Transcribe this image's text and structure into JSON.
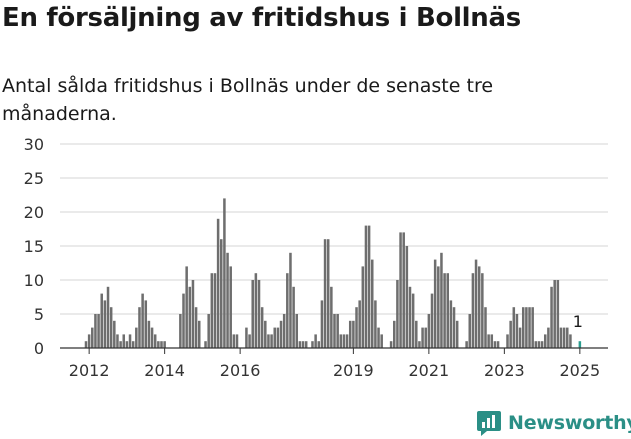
{
  "title": "En försäljning av fritidshus i Bollnäs",
  "subtitle": "Antal sålda fritidshus i Bollnäs under de senaste tre månaderna.",
  "brand": {
    "name": "Newsworthy"
  },
  "colors": {
    "bar": "#6e6e6e",
    "highlight": "#2a9d8f",
    "grid": "#d4d4d4",
    "axis": "#333333",
    "brand": "#2b8f86"
  },
  "chart_data": {
    "type": "bar",
    "x_unit": "month",
    "x_start": "2011-12",
    "x_end": "2025-02",
    "ylim": [
      0,
      30
    ],
    "y_ticks": [
      0,
      5,
      10,
      15,
      20,
      25,
      30
    ],
    "x_ticks": [
      {
        "label": "2012",
        "x": "2012-01"
      },
      {
        "label": "2014",
        "x": "2014-01"
      },
      {
        "label": "2016",
        "x": "2016-01"
      },
      {
        "label": "2019",
        "x": "2019-01"
      },
      {
        "label": "2021",
        "x": "2021-01"
      },
      {
        "label": "2023",
        "x": "2023-01"
      },
      {
        "label": "2025",
        "x": "2025-01"
      }
    ],
    "grid": true,
    "bars": [
      {
        "x": "2011-12",
        "value": 1
      },
      {
        "x": "2012-01",
        "value": 2
      },
      {
        "x": "2012-02",
        "value": 3
      },
      {
        "x": "2012-03",
        "value": 5
      },
      {
        "x": "2012-04",
        "value": 5
      },
      {
        "x": "2012-05",
        "value": 8
      },
      {
        "x": "2012-06",
        "value": 7
      },
      {
        "x": "2012-07",
        "value": 9
      },
      {
        "x": "2012-08",
        "value": 6
      },
      {
        "x": "2012-09",
        "value": 4
      },
      {
        "x": "2012-10",
        "value": 2
      },
      {
        "x": "2012-11",
        "value": 1
      },
      {
        "x": "2012-12",
        "value": 2
      },
      {
        "x": "2013-01",
        "value": 1
      },
      {
        "x": "2013-02",
        "value": 2
      },
      {
        "x": "2013-03",
        "value": 1
      },
      {
        "x": "2013-04",
        "value": 3
      },
      {
        "x": "2013-05",
        "value": 6
      },
      {
        "x": "2013-06",
        "value": 8
      },
      {
        "x": "2013-07",
        "value": 7
      },
      {
        "x": "2013-08",
        "value": 4
      },
      {
        "x": "2013-09",
        "value": 3
      },
      {
        "x": "2013-10",
        "value": 2
      },
      {
        "x": "2013-11",
        "value": 1
      },
      {
        "x": "2013-12",
        "value": 1
      },
      {
        "x": "2014-01",
        "value": 1
      },
      {
        "x": "2014-06",
        "value": 5
      },
      {
        "x": "2014-07",
        "value": 8
      },
      {
        "x": "2014-08",
        "value": 12
      },
      {
        "x": "2014-09",
        "value": 9
      },
      {
        "x": "2014-10",
        "value": 10
      },
      {
        "x": "2014-11",
        "value": 6
      },
      {
        "x": "2014-12",
        "value": 4
      },
      {
        "x": "2015-02",
        "value": 1
      },
      {
        "x": "2015-03",
        "value": 5
      },
      {
        "x": "2015-04",
        "value": 11
      },
      {
        "x": "2015-05",
        "value": 11
      },
      {
        "x": "2015-06",
        "value": 19
      },
      {
        "x": "2015-07",
        "value": 16
      },
      {
        "x": "2015-08",
        "value": 22
      },
      {
        "x": "2015-09",
        "value": 14
      },
      {
        "x": "2015-10",
        "value": 12
      },
      {
        "x": "2015-11",
        "value": 2
      },
      {
        "x": "2015-12",
        "value": 2
      },
      {
        "x": "2016-03",
        "value": 3
      },
      {
        "x": "2016-04",
        "value": 2
      },
      {
        "x": "2016-05",
        "value": 10
      },
      {
        "x": "2016-06",
        "value": 11
      },
      {
        "x": "2016-07",
        "value": 10
      },
      {
        "x": "2016-08",
        "value": 6
      },
      {
        "x": "2016-09",
        "value": 4
      },
      {
        "x": "2016-10",
        "value": 2
      },
      {
        "x": "2016-11",
        "value": 2
      },
      {
        "x": "2016-12",
        "value": 3
      },
      {
        "x": "2017-01",
        "value": 3
      },
      {
        "x": "2017-02",
        "value": 4
      },
      {
        "x": "2017-03",
        "value": 5
      },
      {
        "x": "2017-04",
        "value": 11
      },
      {
        "x": "2017-05",
        "value": 14
      },
      {
        "x": "2017-06",
        "value": 9
      },
      {
        "x": "2017-07",
        "value": 5
      },
      {
        "x": "2017-08",
        "value": 1
      },
      {
        "x": "2017-09",
        "value": 1
      },
      {
        "x": "2017-10",
        "value": 1
      },
      {
        "x": "2017-12",
        "value": 1
      },
      {
        "x": "2018-01",
        "value": 2
      },
      {
        "x": "2018-02",
        "value": 1
      },
      {
        "x": "2018-03",
        "value": 7
      },
      {
        "x": "2018-04",
        "value": 16
      },
      {
        "x": "2018-05",
        "value": 16
      },
      {
        "x": "2018-06",
        "value": 9
      },
      {
        "x": "2018-07",
        "value": 5
      },
      {
        "x": "2018-08",
        "value": 5
      },
      {
        "x": "2018-09",
        "value": 2
      },
      {
        "x": "2018-10",
        "value": 2
      },
      {
        "x": "2018-11",
        "value": 2
      },
      {
        "x": "2018-12",
        "value": 4
      },
      {
        "x": "2019-01",
        "value": 4
      },
      {
        "x": "2019-02",
        "value": 6
      },
      {
        "x": "2019-03",
        "value": 7
      },
      {
        "x": "2019-04",
        "value": 12
      },
      {
        "x": "2019-05",
        "value": 18
      },
      {
        "x": "2019-06",
        "value": 18
      },
      {
        "x": "2019-07",
        "value": 13
      },
      {
        "x": "2019-08",
        "value": 7
      },
      {
        "x": "2019-09",
        "value": 3
      },
      {
        "x": "2019-10",
        "value": 2
      },
      {
        "x": "2020-01",
        "value": 1
      },
      {
        "x": "2020-02",
        "value": 4
      },
      {
        "x": "2020-03",
        "value": 10
      },
      {
        "x": "2020-04",
        "value": 17
      },
      {
        "x": "2020-05",
        "value": 17
      },
      {
        "x": "2020-06",
        "value": 15
      },
      {
        "x": "2020-07",
        "value": 9
      },
      {
        "x": "2020-08",
        "value": 8
      },
      {
        "x": "2020-09",
        "value": 4
      },
      {
        "x": "2020-10",
        "value": 1
      },
      {
        "x": "2020-11",
        "value": 3
      },
      {
        "x": "2020-12",
        "value": 3
      },
      {
        "x": "2021-01",
        "value": 5
      },
      {
        "x": "2021-02",
        "value": 8
      },
      {
        "x": "2021-03",
        "value": 13
      },
      {
        "x": "2021-04",
        "value": 12
      },
      {
        "x": "2021-05",
        "value": 14
      },
      {
        "x": "2021-06",
        "value": 11
      },
      {
        "x": "2021-07",
        "value": 11
      },
      {
        "x": "2021-08",
        "value": 7
      },
      {
        "x": "2021-09",
        "value": 6
      },
      {
        "x": "2021-10",
        "value": 4
      },
      {
        "x": "2022-01",
        "value": 1
      },
      {
        "x": "2022-02",
        "value": 5
      },
      {
        "x": "2022-03",
        "value": 11
      },
      {
        "x": "2022-04",
        "value": 13
      },
      {
        "x": "2022-05",
        "value": 12
      },
      {
        "x": "2022-06",
        "value": 11
      },
      {
        "x": "2022-07",
        "value": 6
      },
      {
        "x": "2022-08",
        "value": 2
      },
      {
        "x": "2022-09",
        "value": 2
      },
      {
        "x": "2022-10",
        "value": 1
      },
      {
        "x": "2022-11",
        "value": 1
      },
      {
        "x": "2023-02",
        "value": 2
      },
      {
        "x": "2023-03",
        "value": 4
      },
      {
        "x": "2023-04",
        "value": 6
      },
      {
        "x": "2023-05",
        "value": 5
      },
      {
        "x": "2023-06",
        "value": 3
      },
      {
        "x": "2023-07",
        "value": 6
      },
      {
        "x": "2023-08",
        "value": 6
      },
      {
        "x": "2023-09",
        "value": 6
      },
      {
        "x": "2023-10",
        "value": 6
      },
      {
        "x": "2023-11",
        "value": 1
      },
      {
        "x": "2023-12",
        "value": 1
      },
      {
        "x": "2024-01",
        "value": 1
      },
      {
        "x": "2024-02",
        "value": 2
      },
      {
        "x": "2024-03",
        "value": 3
      },
      {
        "x": "2024-04",
        "value": 9
      },
      {
        "x": "2024-05",
        "value": 10
      },
      {
        "x": "2024-06",
        "value": 10
      },
      {
        "x": "2024-07",
        "value": 3
      },
      {
        "x": "2024-08",
        "value": 3
      },
      {
        "x": "2024-09",
        "value": 3
      },
      {
        "x": "2024-10",
        "value": 2
      },
      {
        "x": "2025-01",
        "value": 1,
        "highlight": true,
        "label": "1"
      }
    ]
  }
}
